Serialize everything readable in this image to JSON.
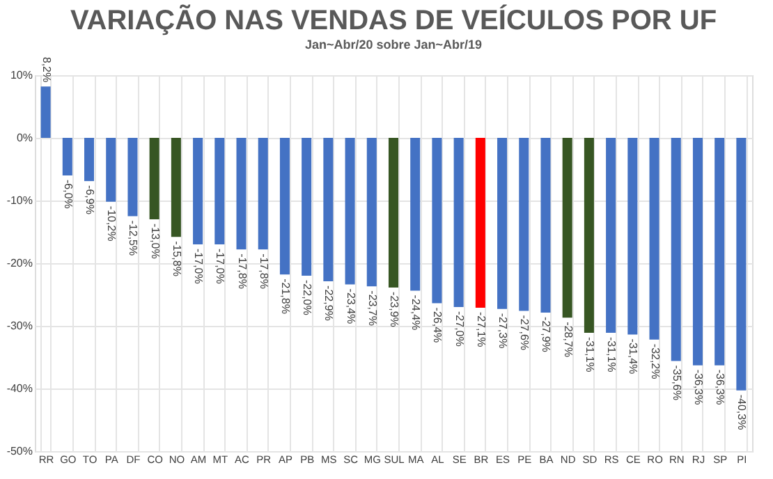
{
  "chart_data": {
    "type": "bar",
    "title": "VARIAÇÃO NAS VENDAS DE VEÍCULOS POR UF",
    "subtitle": "Jan~Abr/20 sobre Jan~Abr/19",
    "categories": [
      "RR",
      "GO",
      "TO",
      "PA",
      "DF",
      "CO",
      "NO",
      "AM",
      "MT",
      "AC",
      "PR",
      "AP",
      "PB",
      "MS",
      "SC",
      "MG",
      "SUL",
      "MA",
      "AL",
      "SE",
      "BR",
      "ES",
      "PE",
      "BA",
      "ND",
      "SD",
      "RS",
      "CE",
      "RO",
      "RN",
      "RJ",
      "SP",
      "PI"
    ],
    "values": [
      8.2,
      -6.0,
      -6.9,
      -10.2,
      -12.5,
      -13.0,
      -15.8,
      -17.0,
      -17.0,
      -17.8,
      -17.8,
      -21.8,
      -22.0,
      -22.9,
      -23.4,
      -23.7,
      -23.9,
      -24.4,
      -26.4,
      -27.0,
      -27.1,
      -27.3,
      -27.6,
      -27.9,
      -28.7,
      -31.1,
      -31.1,
      -31.4,
      -32.2,
      -35.6,
      -36.3,
      -36.3,
      -40.3
    ],
    "value_labels": [
      "8,2%",
      "-6,0%",
      "-6,9%",
      "-10,2%",
      "-12,5%",
      "-13,0%",
      "-15,8%",
      "-17,0%",
      "-17,0%",
      "-17,8%",
      "-17,8%",
      "-21,8%",
      "-22,0%",
      "-22,9%",
      "-23,4%",
      "-23,7%",
      "-23,9%",
      "-24,4%",
      "-26,4%",
      "-27,0%",
      "-27,1%",
      "-27,3%",
      "-27,6%",
      "-27,9%",
      "-28,7%",
      "-31,1%",
      "-31,1%",
      "-31,4%",
      "-32,2%",
      "-35,6%",
      "-36,3%",
      "-36,3%",
      "-40,3%"
    ],
    "colors": [
      "#4472c4",
      "#4472c4",
      "#4472c4",
      "#4472c4",
      "#4472c4",
      "#375623",
      "#375623",
      "#4472c4",
      "#4472c4",
      "#4472c4",
      "#4472c4",
      "#4472c4",
      "#4472c4",
      "#4472c4",
      "#4472c4",
      "#4472c4",
      "#375623",
      "#4472c4",
      "#4472c4",
      "#4472c4",
      "#ff0000",
      "#4472c4",
      "#4472c4",
      "#4472c4",
      "#375623",
      "#375623",
      "#4472c4",
      "#4472c4",
      "#4472c4",
      "#4472c4",
      "#4472c4",
      "#4472c4",
      "#4472c4"
    ],
    "ylim": [
      -50,
      10
    ],
    "yticks": [
      {
        "value": 10,
        "label": "10%"
      },
      {
        "value": 0,
        "label": "0%"
      },
      {
        "value": -10,
        "label": "-10%"
      },
      {
        "value": -20,
        "label": "-20%"
      },
      {
        "value": -30,
        "label": "-30%"
      },
      {
        "value": -40,
        "label": "-40%"
      },
      {
        "value": -50,
        "label": "-50%"
      }
    ],
    "grid": true
  }
}
